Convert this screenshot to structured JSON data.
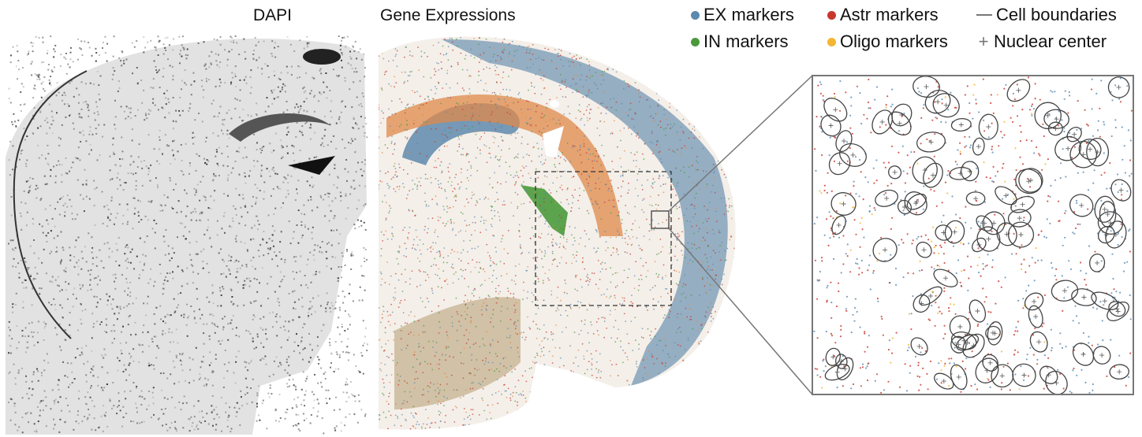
{
  "titles": {
    "dapi": "DAPI",
    "gene": "Gene Expressions"
  },
  "legend": [
    {
      "key": "ex",
      "label": "EX markers",
      "color": "#5b89b0",
      "symbol": "dot"
    },
    {
      "key": "astr",
      "label": "Astr markers",
      "color": "#c8372d",
      "symbol": "dot"
    },
    {
      "key": "cell",
      "label": "Cell boundaries",
      "color": "#777777",
      "symbol": "line"
    },
    {
      "key": "in",
      "label": "IN markers",
      "color": "#4a9a3c",
      "symbol": "dot"
    },
    {
      "key": "oligo",
      "label": "Oligo markers",
      "color": "#f2b632",
      "symbol": "dot"
    },
    {
      "key": "nuc",
      "label": "Nuclear center",
      "color": "#777777",
      "symbol": "plus",
      "glyph": "+"
    }
  ],
  "colors": {
    "ex": "#5b89b0",
    "in": "#4a9a3c",
    "astr": "#c8372d",
    "oligo": "#f2b632",
    "orange": "#e08a4a",
    "boundary": "#444444"
  }
}
